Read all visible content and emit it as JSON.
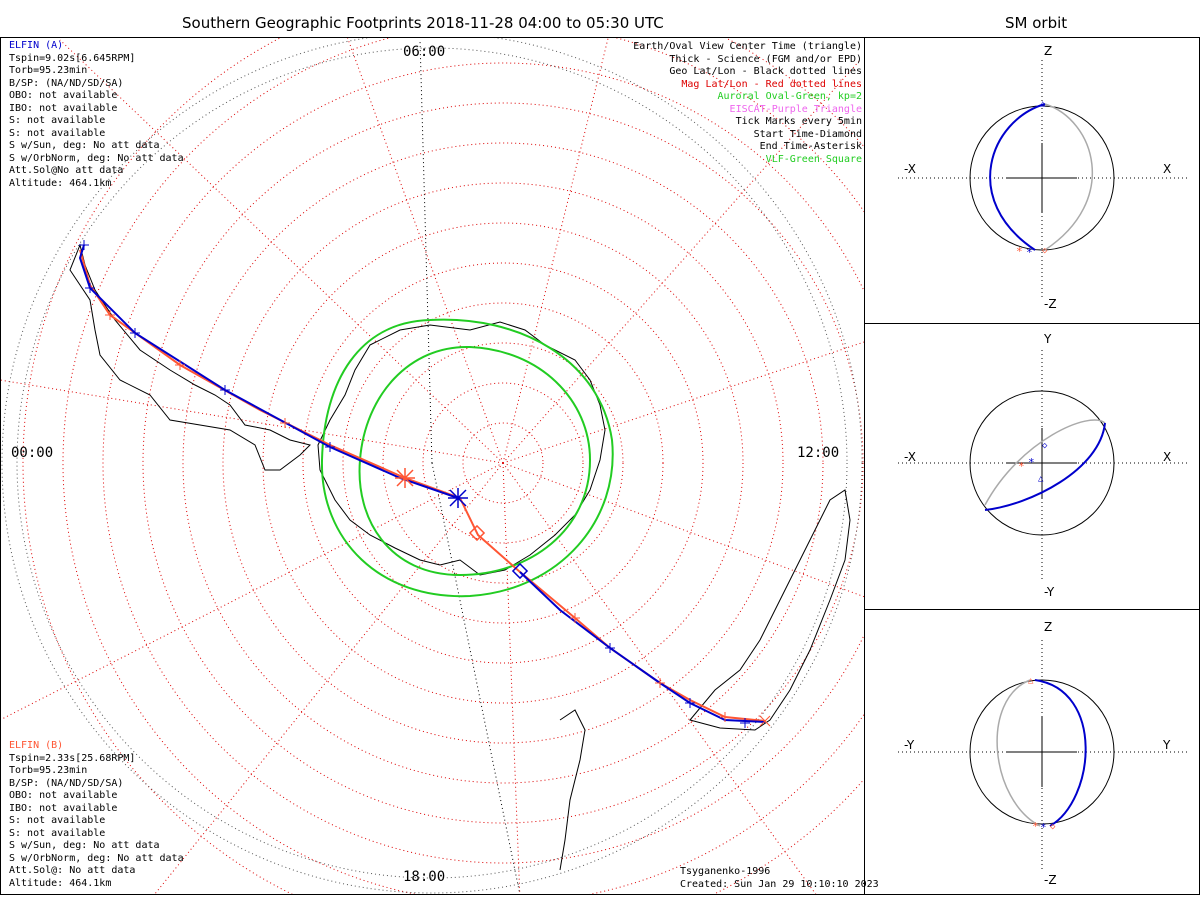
{
  "header": {
    "main_title": "Southern Geographic Footprints 2018-11-28 04:00 to 05:30 UTC",
    "side_title": "SM orbit"
  },
  "local_time_labels": {
    "top": "06:00",
    "left": "00:00",
    "right": "12:00",
    "bottom": "18:00"
  },
  "elfin_a": {
    "name": "ELFIN (A)",
    "color": "#0000cc",
    "lines": [
      "Tspin=9.02s[6.645RPM]",
      "Torb=95.23min",
      "B/SP: (NA/ND/SD/SA)",
      "OBO: not available",
      "IBO: not available",
      "S: not available",
      "S: not available",
      "S w/Sun, deg: No att data",
      "S w/OrbNorm, deg: No att data",
      "Att.Sol@No att data",
      "Altitude: 464.1km"
    ]
  },
  "elfin_b": {
    "name": "ELFIN (B)",
    "color": "#ff5533",
    "lines": [
      "Tspin=2.33s[25.68RPM]",
      "Torb=95.23min",
      "B/SP: (NA/ND/SD/SA)",
      "OBO: not available",
      "IBO: not available",
      "S: not available",
      "S: not available",
      "S w/Sun, deg: No att data",
      "S w/OrbNorm, deg: No att data",
      "Att.Sol@: No att data",
      "Altitude: 464.1km"
    ]
  },
  "legend": [
    {
      "text": "Earth/Oval View Center Time (triangle)",
      "color": "#000000"
    },
    {
      "text": "Thick - Science (FGM and/or EPD)",
      "color": "#000000"
    },
    {
      "text": "Geo Lat/Lon - Black dotted lines",
      "color": "#000000"
    },
    {
      "text": "Mag Lat/Lon - Red dotted lines",
      "color": "#dd0000"
    },
    {
      "text": "Auroral Oval-Green, kp=2",
      "color": "#22cc22"
    },
    {
      "text": "EISCAT-Purple Triangle",
      "color": "#ee66ee"
    },
    {
      "text": "Tick Marks every 5min",
      "color": "#000000"
    },
    {
      "text": "Start Time-Diamond",
      "color": "#000000"
    },
    {
      "text": "End Time-Asterisk",
      "color": "#000000"
    },
    {
      "text": "VLF-Green Square",
      "color": "#22cc22"
    }
  ],
  "footer": {
    "model": "Tsyganenko-1996",
    "created": "Created: Sun Jan 29 10:10:10 2023"
  },
  "sm_panels": [
    {
      "top": "Z",
      "bottom": "-Z",
      "left": "-X",
      "right": "X"
    },
    {
      "top": "Y",
      "bottom": "-Y",
      "left": "-X",
      "right": "X"
    },
    {
      "top": "Z",
      "bottom": "-Z",
      "left": "-Y",
      "right": "Y"
    }
  ],
  "colors": {
    "elfin_a_track": "#0000cc",
    "elfin_b_track": "#ff5533",
    "mag_grid": "#dd0000",
    "auroral_oval": "#22cc22",
    "orbit_other": "#aaaaaa"
  }
}
